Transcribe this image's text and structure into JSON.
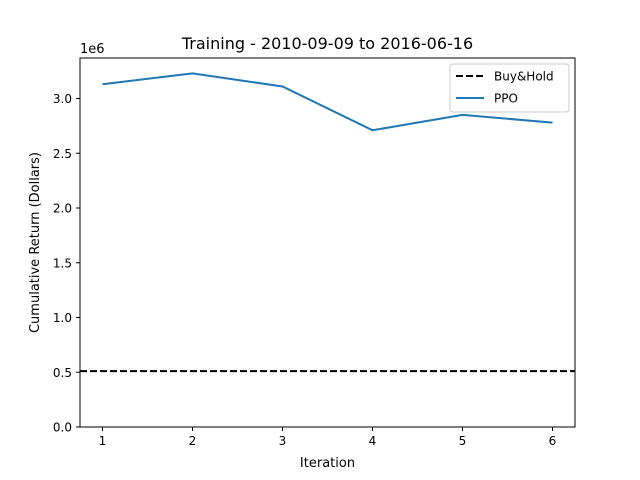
{
  "chart_data": {
    "type": "line",
    "title": "Training - 2010-09-09 to 2016-06-16",
    "xlabel": "Iteration",
    "ylabel": "Cumulative Return (Dollars)",
    "y_multiplier_label": "1e6",
    "x": [
      1,
      2,
      3,
      4,
      5,
      6
    ],
    "xlim": [
      0.75,
      6.25
    ],
    "ylim": [
      0.0,
      3.37
    ],
    "x_ticks": [
      1,
      2,
      3,
      4,
      5,
      6
    ],
    "y_ticks": [
      0.0,
      0.5,
      1.0,
      1.5,
      2.0,
      2.5,
      3.0
    ],
    "y_tick_labels": [
      "0.0",
      "0.5",
      "1.0",
      "1.5",
      "2.0",
      "2.5",
      "3.0"
    ],
    "grid": false,
    "legend_position": "top-right",
    "series": [
      {
        "name": "Buy&Hold",
        "style": "dashed",
        "color": "#000000",
        "values": [
          0.51,
          0.51,
          0.51,
          0.51,
          0.51,
          0.51
        ],
        "span": "full"
      },
      {
        "name": "PPO",
        "style": "solid",
        "color": "#1f77b4",
        "values": [
          3.13,
          3.23,
          3.11,
          2.71,
          2.85,
          2.78
        ]
      }
    ]
  }
}
